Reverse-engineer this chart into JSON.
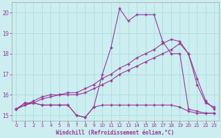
{
  "bg_color": "#cceef0",
  "grid_color": "#aadddd",
  "line_color": "#993399",
  "xlabel": "Windchill (Refroidissement éolien,°C)",
  "xlim_min": -0.5,
  "xlim_max": 23.5,
  "ylim_min": 14.75,
  "ylim_max": 20.5,
  "yticks": [
    15,
    16,
    17,
    18,
    19,
    20
  ],
  "xticks": [
    0,
    1,
    2,
    3,
    4,
    5,
    6,
    7,
    8,
    9,
    10,
    11,
    12,
    13,
    14,
    15,
    16,
    17,
    18,
    19,
    20,
    21,
    22,
    23
  ],
  "series1_x": [
    0,
    1,
    2,
    3,
    4,
    5,
    6,
    7,
    8,
    9,
    10,
    11,
    12,
    13,
    14,
    15,
    16,
    17,
    18,
    19,
    20,
    21,
    22,
    23
  ],
  "series1_y": [
    15.3,
    15.6,
    15.6,
    15.5,
    15.5,
    15.5,
    15.5,
    15.0,
    14.9,
    15.4,
    15.5,
    15.5,
    15.5,
    15.5,
    15.5,
    15.5,
    15.5,
    15.5,
    15.5,
    15.4,
    15.2,
    15.1,
    15.1,
    15.1
  ],
  "series2_x": [
    0,
    1,
    2,
    3,
    4,
    5,
    6,
    7,
    8,
    9,
    10,
    11,
    12,
    13,
    14,
    15,
    16,
    17,
    18,
    19,
    20,
    21,
    22,
    23
  ],
  "series2_y": [
    15.3,
    15.6,
    15.6,
    15.5,
    15.5,
    15.5,
    15.5,
    15.0,
    14.9,
    15.4,
    17.0,
    18.3,
    20.2,
    19.6,
    19.9,
    19.9,
    19.9,
    18.6,
    18.0,
    18.0,
    15.3,
    15.2,
    15.1,
    15.1
  ],
  "series3_x": [
    0,
    1,
    2,
    3,
    4,
    5,
    6,
    7,
    8,
    9,
    10,
    11,
    12,
    13,
    14,
    15,
    16,
    17,
    18,
    19,
    20,
    21,
    22,
    23
  ],
  "series3_y": [
    15.3,
    15.5,
    15.6,
    15.8,
    15.9,
    16.0,
    16.0,
    16.0,
    16.1,
    16.3,
    16.5,
    16.7,
    17.0,
    17.2,
    17.4,
    17.6,
    17.8,
    18.0,
    18.2,
    18.5,
    18.0,
    16.8,
    15.7,
    15.3
  ],
  "series4_x": [
    0,
    1,
    2,
    3,
    4,
    5,
    6,
    7,
    8,
    9,
    10,
    11,
    12,
    13,
    14,
    15,
    16,
    17,
    18,
    19,
    20,
    21,
    22,
    23
  ],
  "series4_y": [
    15.3,
    15.5,
    15.7,
    15.9,
    16.0,
    16.0,
    16.1,
    16.1,
    16.3,
    16.5,
    16.8,
    17.0,
    17.3,
    17.5,
    17.8,
    18.0,
    18.2,
    18.5,
    18.7,
    18.6,
    18.0,
    16.5,
    15.6,
    15.4
  ]
}
